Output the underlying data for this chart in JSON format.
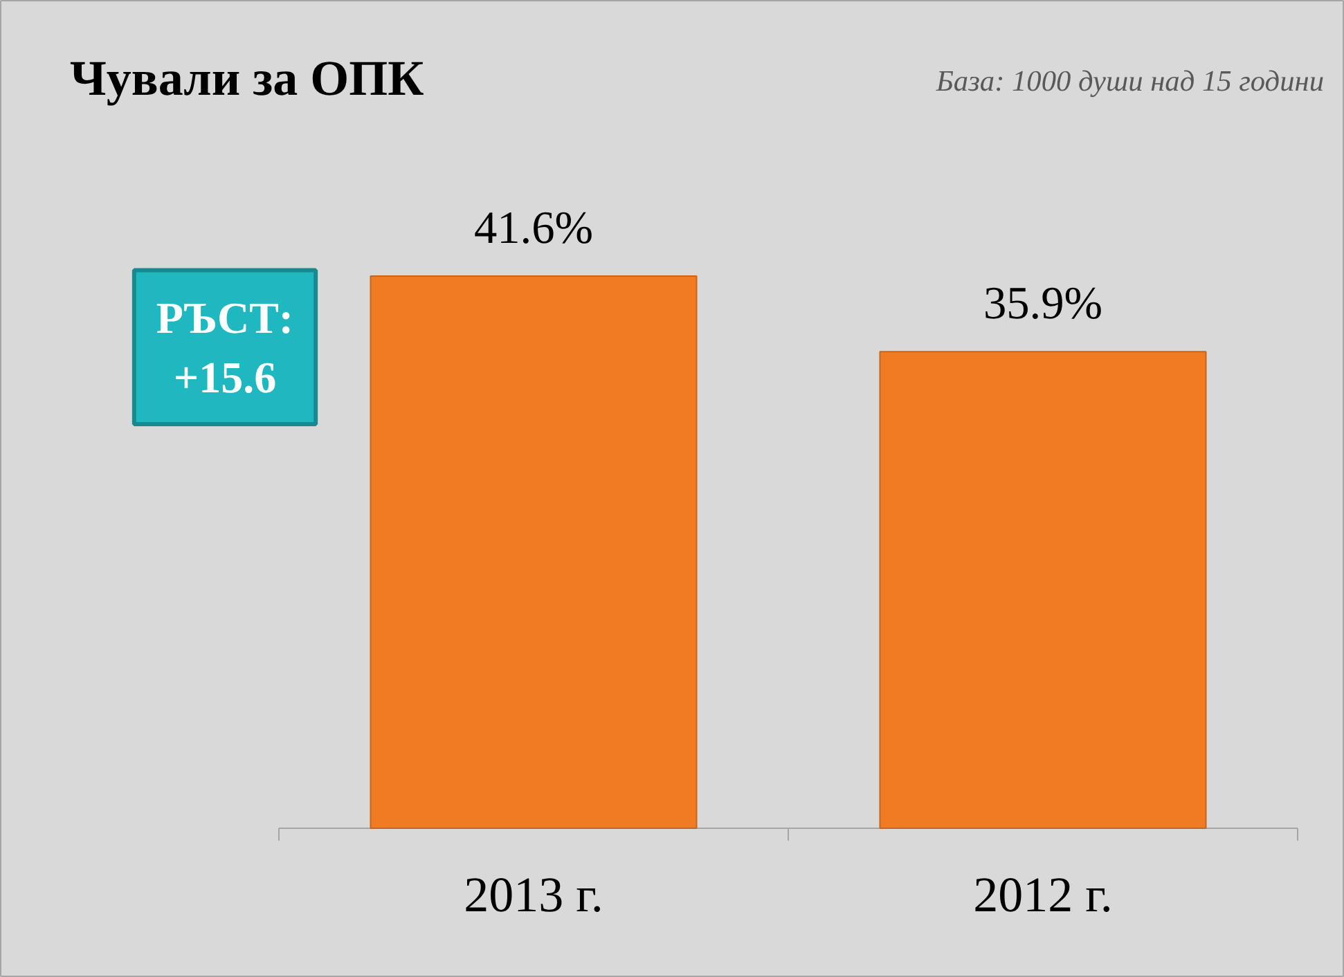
{
  "chart_data": {
    "type": "bar",
    "title": "Чували за ОПК",
    "subtitle": "База: 1000 души над 15 години",
    "categories": [
      "2013 г.",
      "2012 г."
    ],
    "values": [
      41.6,
      35.9
    ],
    "color": "#f07b22",
    "value_labels": [
      "41.6%",
      "35.9%"
    ],
    "tick_labels": "x",
    "grid": false,
    "annotations": [
      "РЪСТ:\n+15.6"
    ]
  }
}
